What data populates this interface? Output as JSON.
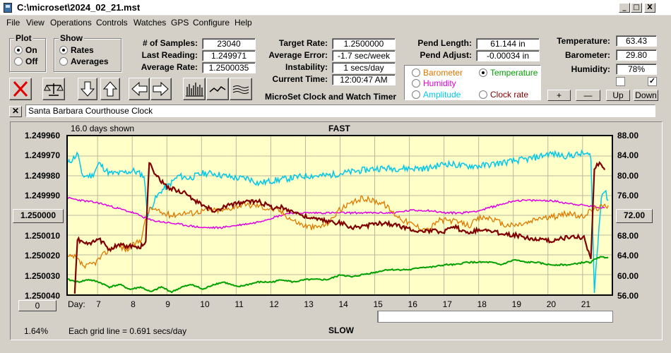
{
  "window": {
    "title": "C:\\microset\\2024_02_21.mst",
    "buttons": {
      "minimize": "_",
      "maximize": "□",
      "close": "X"
    }
  },
  "menu": [
    "File",
    "View",
    "Operations",
    "Controls",
    "Watches",
    "GPS",
    "Configure",
    "Help"
  ],
  "plot_group": {
    "title": "Plot",
    "options": [
      "On",
      "Off"
    ],
    "selected": "On"
  },
  "show_group": {
    "title": "Show",
    "options": [
      "Rates",
      "Averages"
    ],
    "selected": "Rates"
  },
  "stats": {
    "num_samples_label": "# of Samples:",
    "num_samples": "23040",
    "last_reading_label": "Last Reading:",
    "last_reading": "1.249971",
    "average_rate_label": "Average Rate:",
    "average_rate": "1.2500035",
    "target_rate_label": "Target Rate:",
    "target_rate": "1.2500000",
    "average_error_label": "Average Error:",
    "average_error": "-1.7 sec/week",
    "instability_label": "Instability:",
    "instability": "1 secs/day",
    "current_time_label": "Current Time:",
    "current_time": "12:00:47 AM",
    "pend_length_label": "Pend Length:",
    "pend_length": "61.144 in",
    "pend_adjust_label": "Pend Adjust:",
    "pend_adjust": "-0.00034 in",
    "temperature_label": "Temperature:",
    "temperature": "63.43",
    "barometer_label": "Barometer:",
    "barometer": "29.80",
    "humidity_label": "Humidity:",
    "humidity": "78%"
  },
  "subtitle": "MicroSet Clock and Watch Timer",
  "sensor_options": [
    {
      "label": "Barometer",
      "color": "#e07800",
      "selected": false
    },
    {
      "label": "Temperature",
      "color": "#00a000",
      "selected": true
    },
    {
      "label": "Humidity",
      "color": "#e000e0",
      "selected": false
    },
    {
      "label": "Clock rate",
      "color": "#800000",
      "selected": false
    },
    {
      "label": "Amplitude",
      "color": "#00c8e8",
      "selected": false
    }
  ],
  "scale_buttons": {
    "plus": "+",
    "minus": "—",
    "up": "Up",
    "down": "Down"
  },
  "checkboxes": [
    {
      "checked": false
    },
    {
      "checked": true
    }
  ],
  "clock_name": "Santa Barbara Courthouse Clock",
  "chart_header": {
    "days_shown": "16.0 days shown",
    "fast": "FAST",
    "slow": "SLOW",
    "grid_note": "Each grid line = 0.691 secs/day",
    "percent": "1.64%",
    "zero_button": "0",
    "day_label": "Day:"
  },
  "chart_data": {
    "type": "line",
    "y_left_ticks": [
      "1.249960",
      "1.249970",
      "1.249980",
      "1.249990",
      "1.250000",
      "1.250010",
      "1.250020",
      "1.250030",
      "1.250040"
    ],
    "y_left_range": [
      1.24996,
      1.25004
    ],
    "y_left_center": "1.250000",
    "y_right_ticks": [
      "88.00",
      "84.00",
      "80.00",
      "76.00",
      "72.00",
      "68.00",
      "64.00",
      "60.00",
      "56.00"
    ],
    "y_right_range": [
      56,
      88
    ],
    "y_right_center": "72.00",
    "x_ticks": [
      "7",
      "8",
      "9",
      "10",
      "11",
      "12",
      "13",
      "14",
      "15",
      "16",
      "17",
      "18",
      "19",
      "20",
      "21"
    ],
    "x_range": [
      6.1,
      21.8
    ],
    "grid": true,
    "series": [
      {
        "name": "Amplitude",
        "color": "#00c8e8",
        "points": [
          [
            6.1,
            82.5
          ],
          [
            6.4,
            84.5
          ],
          [
            6.5,
            80
          ],
          [
            6.8,
            80
          ],
          [
            7.0,
            82.5
          ],
          [
            7.3,
            80.5
          ],
          [
            7.6,
            80.5
          ],
          [
            8.0,
            81
          ],
          [
            8.3,
            80
          ],
          [
            8.4,
            72
          ],
          [
            8.6,
            75
          ],
          [
            8.8,
            77
          ],
          [
            9.0,
            78
          ],
          [
            9.3,
            80
          ],
          [
            9.6,
            79.5
          ],
          [
            10.0,
            80.5
          ],
          [
            10.3,
            80.5
          ],
          [
            10.6,
            80
          ],
          [
            11.0,
            79.5
          ],
          [
            11.3,
            79.5
          ],
          [
            11.6,
            78.5
          ],
          [
            12.0,
            79
          ],
          [
            12.5,
            79.5
          ],
          [
            13.0,
            80
          ],
          [
            13.5,
            80
          ],
          [
            14.0,
            80.5
          ],
          [
            14.5,
            81
          ],
          [
            15.0,
            81.5
          ],
          [
            15.5,
            81.5
          ],
          [
            16.0,
            81.5
          ],
          [
            16.5,
            81.5
          ],
          [
            17.0,
            82.5
          ],
          [
            17.5,
            82
          ],
          [
            18.0,
            82
          ],
          [
            18.5,
            82.5
          ],
          [
            19.0,
            83
          ],
          [
            19.5,
            83.5
          ],
          [
            20.0,
            84.5
          ],
          [
            20.5,
            84
          ],
          [
            21.0,
            84.5
          ],
          [
            21.2,
            84
          ],
          [
            21.3,
            56.5
          ],
          [
            21.5,
            76
          ],
          [
            21.6,
            77
          ],
          [
            21.7,
            75
          ]
        ]
      },
      {
        "name": "Humidity",
        "color": "#e000e0",
        "points": [
          [
            6.1,
            75.5
          ],
          [
            6.5,
            75
          ],
          [
            7.0,
            74.5
          ],
          [
            7.5,
            73.5
          ],
          [
            8.0,
            72.5
          ],
          [
            8.5,
            71
          ],
          [
            9.0,
            70.5
          ],
          [
            9.5,
            70
          ],
          [
            10.0,
            69.5
          ],
          [
            10.5,
            69.5
          ],
          [
            11.0,
            70
          ],
          [
            11.5,
            70.5
          ],
          [
            12.0,
            71.5
          ],
          [
            12.5,
            72.5
          ],
          [
            13.0,
            72.5
          ],
          [
            13.5,
            72.5
          ],
          [
            14.0,
            72.5
          ],
          [
            14.5,
            72.5
          ],
          [
            15.0,
            72.5
          ],
          [
            15.5,
            72.5
          ],
          [
            16.0,
            73
          ],
          [
            16.5,
            73
          ],
          [
            17.0,
            72.5
          ],
          [
            17.5,
            72.5
          ],
          [
            18.0,
            73
          ],
          [
            18.5,
            74
          ],
          [
            19.0,
            75
          ],
          [
            19.5,
            75
          ],
          [
            20.0,
            75
          ],
          [
            20.5,
            74.5
          ],
          [
            21.0,
            74
          ],
          [
            21.6,
            73.5
          ]
        ]
      },
      {
        "name": "Barometer",
        "color": "#e07800",
        "points": [
          [
            6.1,
            63.5
          ],
          [
            6.3,
            63.5
          ],
          [
            6.6,
            61.5
          ],
          [
            6.9,
            62.5
          ],
          [
            7.2,
            64.5
          ],
          [
            7.5,
            66
          ],
          [
            7.8,
            65
          ],
          [
            8.0,
            66
          ],
          [
            8.2,
            67
          ],
          [
            8.4,
            72.5
          ],
          [
            8.5,
            73.5
          ],
          [
            8.8,
            72.5
          ],
          [
            9.1,
            72
          ],
          [
            9.4,
            72.5
          ],
          [
            9.7,
            72.5
          ],
          [
            10.0,
            73
          ],
          [
            10.3,
            73
          ],
          [
            10.6,
            73
          ],
          [
            11.0,
            74
          ],
          [
            11.3,
            74
          ],
          [
            11.6,
            74
          ],
          [
            11.8,
            73.5
          ],
          [
            12.2,
            73
          ],
          [
            12.6,
            71
          ],
          [
            12.9,
            70
          ],
          [
            13.2,
            69.5
          ],
          [
            13.5,
            70
          ],
          [
            13.7,
            71
          ],
          [
            13.9,
            73
          ],
          [
            14.2,
            74
          ],
          [
            14.6,
            75.5
          ],
          [
            14.9,
            75
          ],
          [
            15.2,
            74.5
          ],
          [
            15.5,
            72.5
          ],
          [
            15.8,
            71
          ],
          [
            16.1,
            70
          ],
          [
            16.5,
            69
          ],
          [
            16.8,
            71
          ],
          [
            17.1,
            71
          ],
          [
            17.4,
            70.5
          ],
          [
            17.7,
            70
          ],
          [
            18.0,
            71.5
          ],
          [
            18.3,
            71.5
          ],
          [
            18.7,
            70
          ],
          [
            19.0,
            70
          ],
          [
            19.4,
            70.5
          ],
          [
            19.7,
            71.5
          ],
          [
            20.0,
            71.5
          ],
          [
            20.3,
            72
          ],
          [
            20.6,
            72.5
          ],
          [
            20.9,
            71.5
          ],
          [
            21.2,
            73
          ],
          [
            21.4,
            73.5
          ],
          [
            21.7,
            74
          ]
        ]
      },
      {
        "name": "Temperature",
        "color": "#00a000",
        "points": [
          [
            6.1,
            59
          ],
          [
            6.4,
            58.5
          ],
          [
            6.7,
            59
          ],
          [
            7.0,
            58.5
          ],
          [
            7.3,
            57.5
          ],
          [
            7.6,
            58
          ],
          [
            7.9,
            57
          ],
          [
            8.2,
            57.5
          ],
          [
            8.5,
            56.5
          ],
          [
            8.8,
            57.5
          ],
          [
            9.1,
            56.5
          ],
          [
            9.4,
            57.5
          ],
          [
            9.7,
            58
          ],
          [
            10.0,
            57
          ],
          [
            10.3,
            58
          ],
          [
            10.6,
            58.5
          ],
          [
            11.0,
            57.5
          ],
          [
            11.3,
            58
          ],
          [
            11.6,
            58.5
          ],
          [
            12.0,
            58.5
          ],
          [
            12.3,
            59
          ],
          [
            12.6,
            58.5
          ],
          [
            13.0,
            59
          ],
          [
            13.3,
            59
          ],
          [
            13.6,
            59
          ],
          [
            14.0,
            60
          ],
          [
            14.3,
            59.5
          ],
          [
            14.6,
            60
          ],
          [
            15.0,
            60.5
          ],
          [
            15.3,
            61
          ],
          [
            15.6,
            61
          ],
          [
            16.0,
            61
          ],
          [
            16.3,
            61.5
          ],
          [
            16.6,
            61.5
          ],
          [
            17.0,
            62
          ],
          [
            17.3,
            62
          ],
          [
            17.6,
            62.5
          ],
          [
            18.0,
            62.5
          ],
          [
            18.3,
            62.5
          ],
          [
            18.6,
            62
          ],
          [
            19.0,
            63
          ],
          [
            19.3,
            62.5
          ],
          [
            19.6,
            62.5
          ],
          [
            20.0,
            62
          ],
          [
            20.3,
            62
          ],
          [
            20.6,
            62
          ],
          [
            21.0,
            62.5
          ],
          [
            21.2,
            62.5
          ],
          [
            21.4,
            63.5
          ],
          [
            21.7,
            63.5
          ]
        ]
      },
      {
        "name": "Clock rate",
        "color": "#800000",
        "points": [
          [
            6.3,
            1.25004
          ],
          [
            6.38,
            1.250012
          ],
          [
            6.7,
            1.250015
          ],
          [
            7.0,
            1.250012
          ],
          [
            7.3,
            1.250017
          ],
          [
            7.6,
            1.250015
          ],
          [
            8.0,
            1.250016
          ],
          [
            8.2,
            1.250016
          ],
          [
            8.35,
            1.250013
          ],
          [
            8.45,
            1.249973
          ],
          [
            8.6,
            1.249978
          ],
          [
            8.9,
            1.249985
          ],
          [
            9.2,
            1.249987
          ],
          [
            9.5,
            1.249989
          ],
          [
            9.8,
            1.249993
          ],
          [
            10.1,
            1.249996
          ],
          [
            10.4,
            1.249998
          ],
          [
            10.7,
            1.249995
          ],
          [
            11.0,
            1.249994
          ],
          [
            11.3,
            1.249993
          ],
          [
            11.6,
            1.249993
          ],
          [
            12.0,
            1.249996
          ],
          [
            12.3,
            1.249996
          ],
          [
            12.6,
            1.249998
          ],
          [
            13.0,
            1.250001
          ],
          [
            13.3,
            1.250002
          ],
          [
            13.6,
            1.250003
          ],
          [
            14.0,
            1.250004
          ],
          [
            14.3,
            1.250006
          ],
          [
            14.6,
            1.250006
          ],
          [
            15.0,
            1.250004
          ],
          [
            15.3,
            1.250004
          ],
          [
            15.6,
            1.250005
          ],
          [
            16.0,
            1.250007
          ],
          [
            16.3,
            1.250008
          ],
          [
            16.6,
            1.250008
          ],
          [
            17.0,
            1.250008
          ],
          [
            17.3,
            1.250006
          ],
          [
            17.6,
            1.250009
          ],
          [
            18.0,
            1.250007
          ],
          [
            18.3,
            1.250008
          ],
          [
            18.6,
            1.250009
          ],
          [
            19.0,
            1.25001
          ],
          [
            19.3,
            1.250011
          ],
          [
            19.6,
            1.250012
          ],
          [
            20.0,
            1.250013
          ],
          [
            20.3,
            1.250012
          ],
          [
            20.6,
            1.250011
          ],
          [
            21.0,
            1.250011
          ],
          [
            21.2,
            1.250022
          ],
          [
            21.3,
            1.249977
          ],
          [
            21.45,
            1.249973
          ],
          [
            21.6,
            1.249977
          ]
        ]
      }
    ]
  }
}
